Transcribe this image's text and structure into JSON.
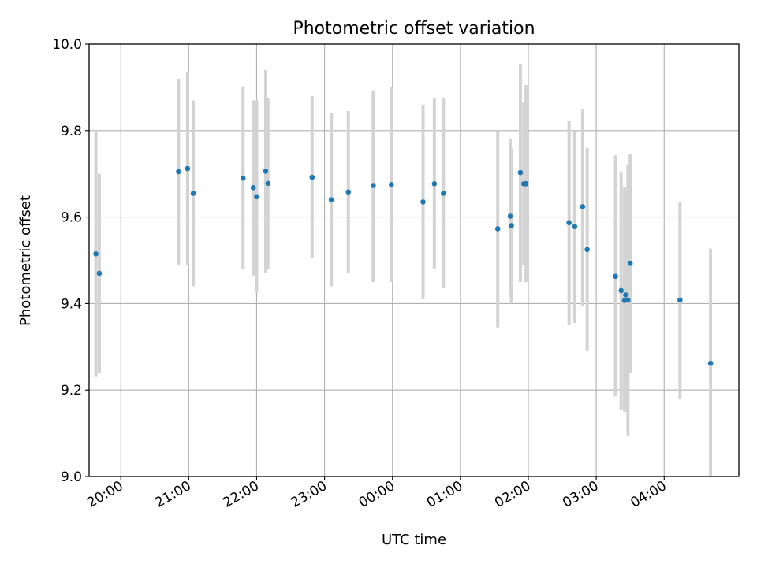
{
  "chart_data": {
    "type": "scatter",
    "title": "Photometric offset variation",
    "xlabel": "UTC time",
    "ylabel": "Photometric offset",
    "ylim": [
      9.0,
      10.0
    ],
    "xlim": [
      "19:32",
      "05:06"
    ],
    "x_ticks": [
      "20:00",
      "21:00",
      "22:00",
      "23:00",
      "00:00",
      "01:00",
      "02:00",
      "03:00",
      "04:00"
    ],
    "y_ticks": [
      "9.0",
      "9.2",
      "9.4",
      "9.6",
      "9.8",
      "10.0"
    ],
    "grid": true,
    "point_color": "#1f77b4",
    "errorbar_color": "#d3d3d3",
    "points": [
      {
        "x": "19:38",
        "y": 9.515,
        "lo": 9.23,
        "hi": 9.8
      },
      {
        "x": "19:41",
        "y": 9.47,
        "lo": 9.24,
        "hi": 9.7
      },
      {
        "x": "20:51",
        "y": 9.705,
        "lo": 9.49,
        "hi": 9.92
      },
      {
        "x": "20:59",
        "y": 9.712,
        "lo": 9.49,
        "hi": 9.935
      },
      {
        "x": "21:04",
        "y": 9.655,
        "lo": 9.44,
        "hi": 9.87
      },
      {
        "x": "21:48",
        "y": 9.69,
        "lo": 9.48,
        "hi": 9.9
      },
      {
        "x": "21:57",
        "y": 9.668,
        "lo": 9.465,
        "hi": 9.87
      },
      {
        "x": "22:00",
        "y": 9.647,
        "lo": 9.425,
        "hi": 9.87
      },
      {
        "x": "22:08",
        "y": 9.706,
        "lo": 9.47,
        "hi": 9.94
      },
      {
        "x": "22:10",
        "y": 9.678,
        "lo": 9.48,
        "hi": 9.875
      },
      {
        "x": "22:49",
        "y": 9.692,
        "lo": 9.505,
        "hi": 9.88
      },
      {
        "x": "23:06",
        "y": 9.64,
        "lo": 9.44,
        "hi": 9.84
      },
      {
        "x": "23:21",
        "y": 9.658,
        "lo": 9.47,
        "hi": 9.845
      },
      {
        "x": "23:43",
        "y": 9.673,
        "lo": 9.45,
        "hi": 9.893
      },
      {
        "x": "23:59",
        "y": 9.675,
        "lo": 9.45,
        "hi": 9.9
      },
      {
        "x": "00:27",
        "y": 9.635,
        "lo": 9.41,
        "hi": 9.86
      },
      {
        "x": "00:37",
        "y": 9.677,
        "lo": 9.48,
        "hi": 9.876
      },
      {
        "x": "00:45",
        "y": 9.655,
        "lo": 9.435,
        "hi": 9.875
      },
      {
        "x": "01:33",
        "y": 9.573,
        "lo": 9.345,
        "hi": 9.8
      },
      {
        "x": "01:44",
        "y": 9.602,
        "lo": 9.42,
        "hi": 9.78
      },
      {
        "x": "01:45",
        "y": 9.58,
        "lo": 9.4,
        "hi": 9.76
      },
      {
        "x": "01:53",
        "y": 9.703,
        "lo": 9.45,
        "hi": 9.955
      },
      {
        "x": "01:56",
        "y": 9.677,
        "lo": 9.49,
        "hi": 9.865
      },
      {
        "x": "01:58",
        "y": 9.677,
        "lo": 9.45,
        "hi": 9.905
      },
      {
        "x": "02:36",
        "y": 9.587,
        "lo": 9.35,
        "hi": 9.822
      },
      {
        "x": "02:41",
        "y": 9.578,
        "lo": 9.355,
        "hi": 9.8
      },
      {
        "x": "02:48",
        "y": 9.624,
        "lo": 9.395,
        "hi": 9.85
      },
      {
        "x": "02:52",
        "y": 9.525,
        "lo": 9.29,
        "hi": 9.76
      },
      {
        "x": "03:17",
        "y": 9.463,
        "lo": 9.185,
        "hi": 9.743
      },
      {
        "x": "03:22",
        "y": 9.43,
        "lo": 9.155,
        "hi": 9.705
      },
      {
        "x": "03:25",
        "y": 9.407,
        "lo": 9.15,
        "hi": 9.67
      },
      {
        "x": "03:26",
        "y": 9.42,
        "lo": 9.15,
        "hi": 9.66
      },
      {
        "x": "03:28",
        "y": 9.408,
        "lo": 9.095,
        "hi": 9.72
      },
      {
        "x": "03:30",
        "y": 9.493,
        "lo": 9.24,
        "hi": 9.745
      },
      {
        "x": "04:14",
        "y": 9.408,
        "lo": 9.18,
        "hi": 9.636
      },
      {
        "x": "04:41",
        "y": 9.262,
        "lo": 9.0,
        "hi": 9.527
      }
    ]
  }
}
